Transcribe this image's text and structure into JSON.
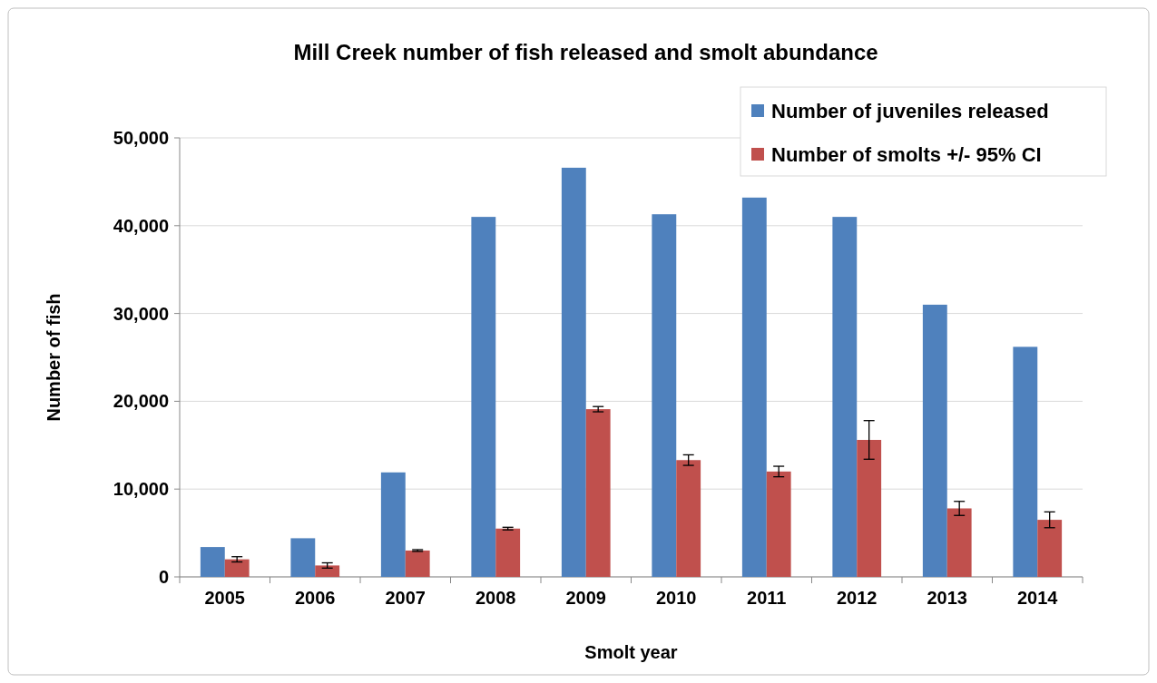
{
  "chart_data": {
    "type": "bar",
    "title": "Mill Creek number of fish released and smolt abundance",
    "xlabel": "Smolt year",
    "ylabel": "Number of fish",
    "categories": [
      "2005",
      "2006",
      "2007",
      "2008",
      "2009",
      "2010",
      "2011",
      "2012",
      "2013",
      "2014"
    ],
    "series": [
      {
        "name": "Number of juveniles released",
        "color": "#4f81bd",
        "values": [
          3400,
          4400,
          11900,
          41000,
          46600,
          41300,
          43200,
          41000,
          31000,
          26200
        ]
      },
      {
        "name": "Number of smolts +/- 95% CI",
        "color": "#c0504d",
        "values": [
          2000,
          1300,
          3000,
          5500,
          19100,
          13300,
          12000,
          15600,
          7800,
          6500
        ],
        "errors": [
          300,
          300,
          100,
          150,
          300,
          600,
          600,
          2200,
          800,
          900
        ]
      }
    ],
    "ylim": [
      0,
      50000
    ],
    "yticks": [
      {
        "value": 0,
        "label": "0"
      },
      {
        "value": 10000,
        "label": "10,000"
      },
      {
        "value": 20000,
        "label": "20,000"
      },
      {
        "value": 30000,
        "label": "30,000"
      },
      {
        "value": 40000,
        "label": "40,000"
      },
      {
        "value": 50000,
        "label": "50,000"
      }
    ],
    "grid": "y",
    "legend": "top right"
  }
}
